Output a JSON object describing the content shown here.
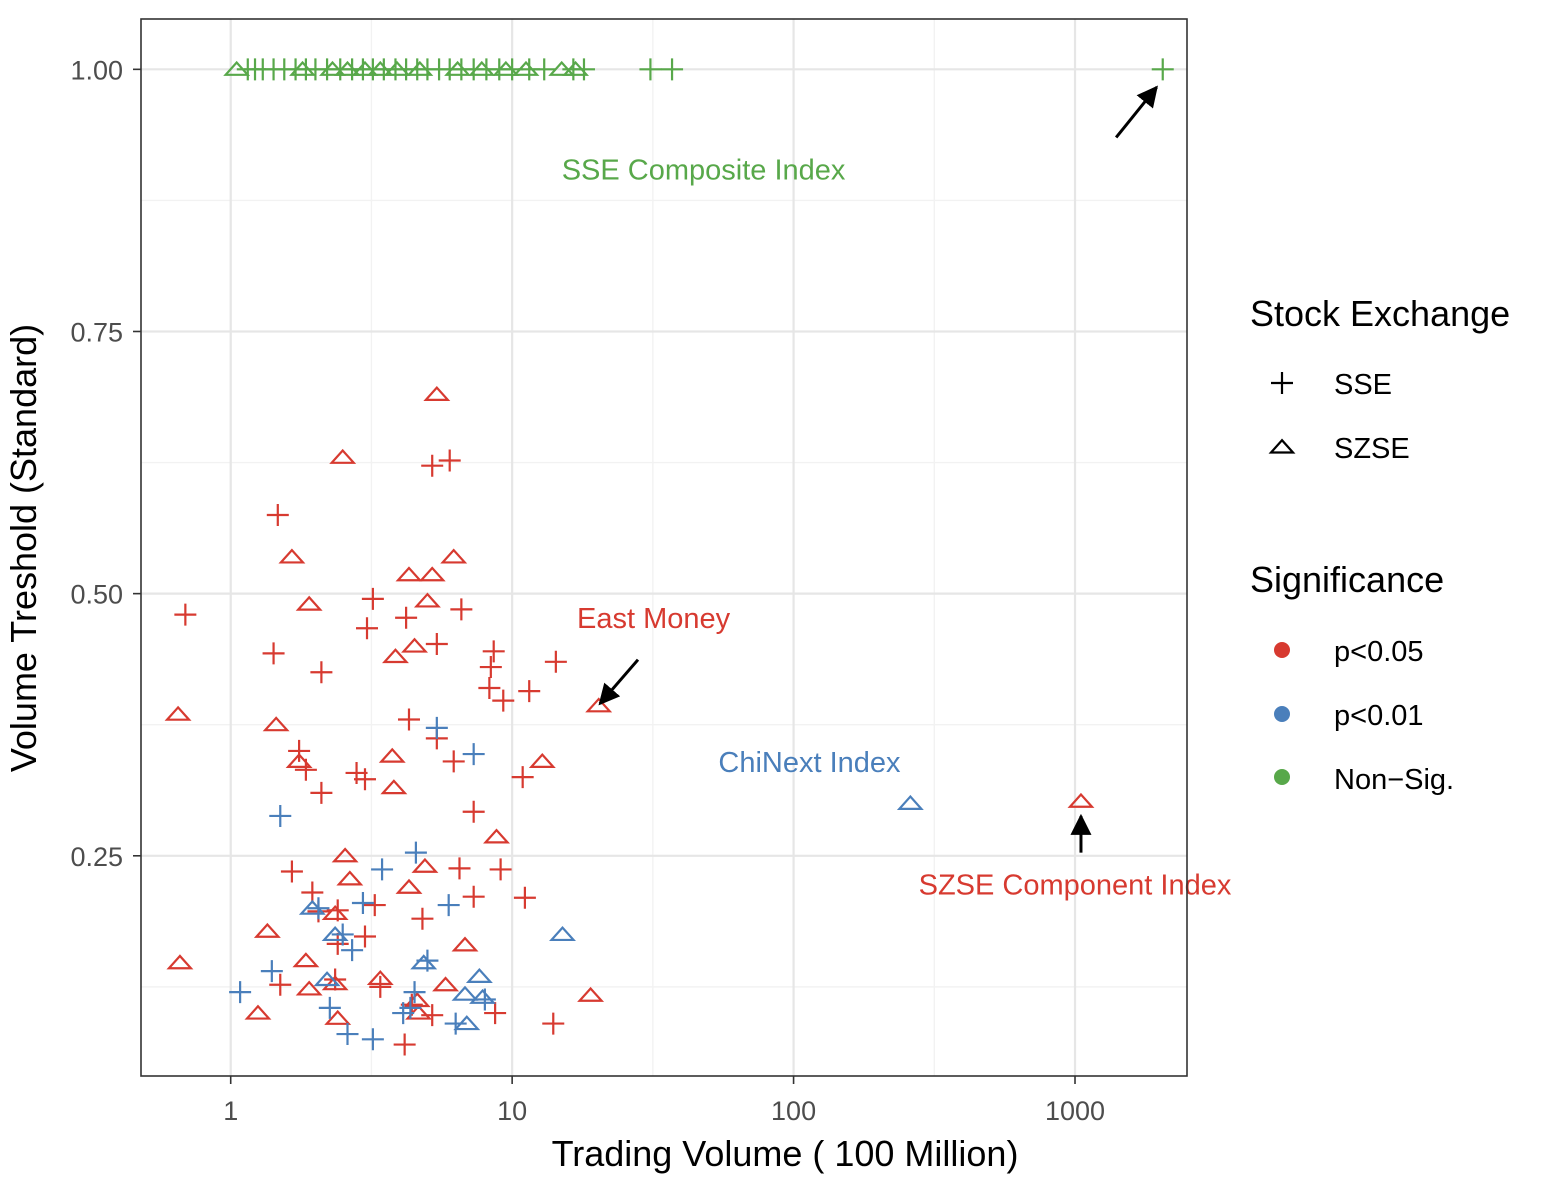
{
  "chart_data": {
    "type": "scatter",
    "xlabel": "Trading Volume ( 100 Million)",
    "ylabel": "Volume Treshold (Standard)",
    "x_scale": "log10",
    "xlim": [
      0.48,
      2500
    ],
    "ylim": [
      0.04,
      1.048
    ],
    "x_ticks": [
      {
        "value": 1,
        "label": "1"
      },
      {
        "value": 10,
        "label": "10"
      },
      {
        "value": 100,
        "label": "100"
      },
      {
        "value": 1000,
        "label": "1000"
      }
    ],
    "y_ticks": [
      {
        "value": 0.25,
        "label": "0.25"
      },
      {
        "value": 0.5,
        "label": "0.50"
      },
      {
        "value": 0.75,
        "label": "0.75"
      },
      {
        "value": 1.0,
        "label": "1.00"
      }
    ],
    "grid": true,
    "colors": {
      "p005": "#d73a30",
      "p001": "#4a7fbb",
      "nonsig": "#58a84a"
    },
    "legend": {
      "placement": "right",
      "shape_title": "Stock Exchange",
      "shape_items": [
        {
          "key": "SSE",
          "label": "SSE",
          "shape": "plus"
        },
        {
          "key": "SZSE",
          "label": "SZSE",
          "shape": "triangle"
        }
      ],
      "color_title": "Significance",
      "color_items": [
        {
          "key": "p005",
          "label": "p<0.05"
        },
        {
          "key": "p001",
          "label": "p<0.01"
        },
        {
          "key": "nonsig",
          "label": "Non−Sig."
        }
      ]
    },
    "annotations": [
      {
        "name": "sse-composite",
        "text": "SSE Composite Index",
        "color": "nonsig",
        "text_x": 15,
        "text_y": 0.895,
        "align": "start",
        "arrow_from": [
          1400,
          0.935
        ],
        "arrow_to": [
          1950,
          0.983
        ]
      },
      {
        "name": "east-money",
        "text": "East Money",
        "color": "p005",
        "text_x": 17,
        "text_y": 0.467,
        "align": "start",
        "arrow_from": [
          28,
          0.437
        ],
        "arrow_to": [
          20.5,
          0.395
        ]
      },
      {
        "name": "chinext-index",
        "text": "ChiNext Index",
        "color": "p001",
        "text_x": 240,
        "text_y": 0.33,
        "align": "end",
        "arrow_from": null,
        "arrow_to": null
      },
      {
        "name": "szse-component",
        "text": "SZSE Component Index",
        "color": "p005",
        "text_x": 1000,
        "text_y": 0.213,
        "align": "middle",
        "arrow_from": [
          1050,
          0.253
        ],
        "arrow_to": [
          1050,
          0.288
        ]
      }
    ],
    "series": [
      {
        "name": "SSE p<0.05",
        "exchange": "SSE",
        "significance": "p005",
        "points": [
          [
            0.69,
            0.48
          ],
          [
            1.47,
            0.575
          ],
          [
            1.42,
            0.443
          ],
          [
            2.1,
            0.425
          ],
          [
            3.2,
            0.495
          ],
          [
            3.05,
            0.467
          ],
          [
            4.2,
            0.477
          ],
          [
            5.4,
            0.452
          ],
          [
            6.6,
            0.485
          ],
          [
            5.2,
            0.622
          ],
          [
            6.0,
            0.627
          ],
          [
            8.6,
            0.445
          ],
          [
            8.4,
            0.43
          ],
          [
            8.3,
            0.41
          ],
          [
            9.3,
            0.398
          ],
          [
            11.5,
            0.407
          ],
          [
            14.3,
            0.435
          ],
          [
            4.3,
            0.38
          ],
          [
            1.75,
            0.35
          ],
          [
            1.85,
            0.332
          ],
          [
            2.1,
            0.31
          ],
          [
            2.8,
            0.329
          ],
          [
            3.0,
            0.323
          ],
          [
            5.4,
            0.362
          ],
          [
            6.2,
            0.34
          ],
          [
            7.3,
            0.292
          ],
          [
            10.9,
            0.325
          ],
          [
            1.65,
            0.235
          ],
          [
            1.95,
            0.215
          ],
          [
            2.05,
            0.197
          ],
          [
            2.4,
            0.198
          ],
          [
            3.25,
            0.203
          ],
          [
            3.0,
            0.173
          ],
          [
            2.4,
            0.166
          ],
          [
            4.8,
            0.19
          ],
          [
            6.5,
            0.238
          ],
          [
            7.3,
            0.211
          ],
          [
            9.1,
            0.237
          ],
          [
            11.1,
            0.21
          ],
          [
            1.5,
            0.127
          ],
          [
            2.35,
            0.132
          ],
          [
            3.4,
            0.125
          ],
          [
            4.4,
            0.108
          ],
          [
            5.2,
            0.098
          ],
          [
            8.7,
            0.1
          ],
          [
            14.0,
            0.09
          ],
          [
            4.15,
            0.07
          ]
        ]
      },
      {
        "name": "SZSE p<0.05",
        "exchange": "SZSE",
        "significance": "p005",
        "points": [
          [
            5.4,
            0.69
          ],
          [
            2.5,
            0.63
          ],
          [
            1.65,
            0.535
          ],
          [
            6.2,
            0.535
          ],
          [
            4.3,
            0.518
          ],
          [
            5.2,
            0.518
          ],
          [
            1.9,
            0.49
          ],
          [
            5.0,
            0.493
          ],
          [
            0.65,
            0.385
          ],
          [
            1.45,
            0.375
          ],
          [
            4.5,
            0.45
          ],
          [
            3.85,
            0.44
          ],
          [
            20.3,
            0.393
          ],
          [
            1.75,
            0.34
          ],
          [
            3.75,
            0.345
          ],
          [
            3.8,
            0.315
          ],
          [
            12.8,
            0.34
          ],
          [
            8.8,
            0.268
          ],
          [
            2.55,
            0.25
          ],
          [
            2.65,
            0.228
          ],
          [
            4.9,
            0.24
          ],
          [
            4.3,
            0.22
          ],
          [
            1.35,
            0.178
          ],
          [
            2.35,
            0.195
          ],
          [
            6.8,
            0.165
          ],
          [
            0.66,
            0.148
          ],
          [
            1.85,
            0.15
          ],
          [
            1.25,
            0.1
          ],
          [
            1.9,
            0.123
          ],
          [
            2.35,
            0.128
          ],
          [
            3.4,
            0.133
          ],
          [
            4.6,
            0.112
          ],
          [
            4.65,
            0.1
          ],
          [
            5.8,
            0.127
          ],
          [
            19.0,
            0.117
          ],
          [
            2.4,
            0.095
          ],
          [
            1050,
            0.302
          ]
        ]
      },
      {
        "name": "SSE p<0.01",
        "exchange": "SSE",
        "significance": "p001",
        "points": [
          [
            1.08,
            0.12
          ],
          [
            1.4,
            0.14
          ],
          [
            1.5,
            0.288
          ],
          [
            2.05,
            0.2
          ],
          [
            2.25,
            0.105
          ],
          [
            2.5,
            0.175
          ],
          [
            2.6,
            0.08
          ],
          [
            2.7,
            0.16
          ],
          [
            2.95,
            0.205
          ],
          [
            3.2,
            0.075
          ],
          [
            3.45,
            0.237
          ],
          [
            4.1,
            0.1
          ],
          [
            4.35,
            0.105
          ],
          [
            4.55,
            0.253
          ],
          [
            5.0,
            0.15
          ],
          [
            5.4,
            0.372
          ],
          [
            5.95,
            0.203
          ],
          [
            6.3,
            0.09
          ],
          [
            7.3,
            0.347
          ],
          [
            8.0,
            0.113
          ],
          [
            4.5,
            0.12
          ]
        ]
      },
      {
        "name": "SZSE p<0.01",
        "exchange": "SZSE",
        "significance": "p001",
        "points": [
          [
            1.95,
            0.2
          ],
          [
            2.35,
            0.175
          ],
          [
            2.2,
            0.132
          ],
          [
            4.85,
            0.148
          ],
          [
            6.8,
            0.118
          ],
          [
            7.65,
            0.135
          ],
          [
            7.85,
            0.115
          ],
          [
            6.9,
            0.09
          ],
          [
            15.1,
            0.175
          ],
          [
            260,
            0.3
          ]
        ]
      },
      {
        "name": "SSE Non-Sig.",
        "exchange": "SSE",
        "significance": "nonsig",
        "points": [
          [
            1.15,
            1.0
          ],
          [
            1.22,
            1.0
          ],
          [
            1.3,
            1.0
          ],
          [
            1.42,
            1.0
          ],
          [
            1.55,
            1.0
          ],
          [
            1.7,
            1.0
          ],
          [
            1.85,
            1.0
          ],
          [
            2.0,
            1.0
          ],
          [
            2.2,
            1.0
          ],
          [
            2.45,
            1.0
          ],
          [
            2.7,
            1.0
          ],
          [
            2.95,
            1.0
          ],
          [
            3.2,
            1.0
          ],
          [
            3.5,
            1.0
          ],
          [
            3.85,
            1.0
          ],
          [
            4.2,
            1.0
          ],
          [
            4.6,
            1.0
          ],
          [
            5.0,
            1.0
          ],
          [
            5.5,
            1.0
          ],
          [
            6.0,
            1.0
          ],
          [
            6.6,
            1.0
          ],
          [
            7.3,
            1.0
          ],
          [
            8.1,
            1.0
          ],
          [
            9.0,
            1.0
          ],
          [
            10.0,
            1.0
          ],
          [
            11.5,
            1.0
          ],
          [
            13.0,
            1.0
          ],
          [
            16.5,
            1.0
          ],
          [
            18.0,
            1.0
          ],
          [
            31.0,
            1.0
          ],
          [
            37.0,
            1.0
          ],
          [
            2050,
            1.0
          ]
        ]
      },
      {
        "name": "SZSE Non-Sig.",
        "exchange": "SZSE",
        "significance": "nonsig",
        "points": [
          [
            1.05,
            1.0
          ],
          [
            1.8,
            1.0
          ],
          [
            2.3,
            1.0
          ],
          [
            2.6,
            1.0
          ],
          [
            3.0,
            1.0
          ],
          [
            3.4,
            1.0
          ],
          [
            3.9,
            1.0
          ],
          [
            4.7,
            1.0
          ],
          [
            6.4,
            1.0
          ],
          [
            7.8,
            1.0
          ],
          [
            9.5,
            1.0
          ],
          [
            11.2,
            1.0
          ],
          [
            15.0,
            1.0
          ],
          [
            16.8,
            1.0
          ]
        ]
      }
    ]
  }
}
